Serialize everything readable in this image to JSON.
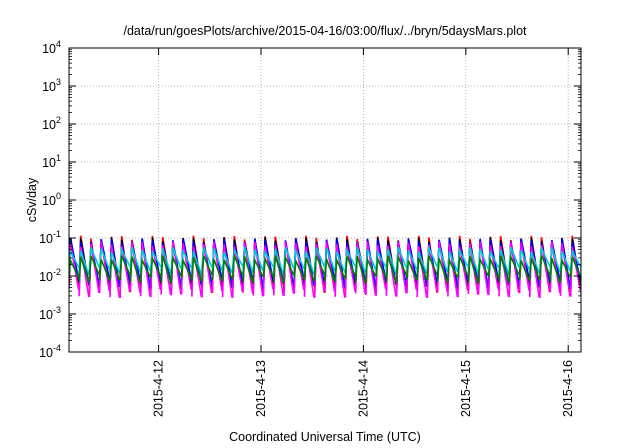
{
  "chart_data": {
    "type": "line",
    "title": "/data/run/goesPlots/archive/2015-04-16/03:00/flux/../bryn/5daysMars.plot",
    "xlabel": "Coordinated Universal Time (UTC)",
    "ylabel": "cSv/day",
    "yscale": "log",
    "ylim": [
      0.0001,
      10000
    ],
    "y_ticks": [
      {
        "value": 0.0001,
        "base": "10",
        "exp": "-4"
      },
      {
        "value": 0.001,
        "base": "10",
        "exp": "-3"
      },
      {
        "value": 0.01,
        "base": "10",
        "exp": "-2"
      },
      {
        "value": 0.1,
        "base": "10",
        "exp": "-1"
      },
      {
        "value": 1,
        "base": "10",
        "exp": "0"
      },
      {
        "value": 10,
        "base": "10",
        "exp": "1"
      },
      {
        "value": 100,
        "base": "10",
        "exp": "2"
      },
      {
        "value": 1000,
        "base": "10",
        "exp": "3"
      },
      {
        "value": 10000,
        "base": "10",
        "exp": "4"
      }
    ],
    "xlim": [
      "2015-04-11T03:00",
      "2015-04-16T03:00"
    ],
    "x_ticks": [
      {
        "value": "2015-04-12T00:00",
        "label": "2015-4-12"
      },
      {
        "value": "2015-04-13T00:00",
        "label": "2015-4-13"
      },
      {
        "value": "2015-04-14T00:00",
        "label": "2015-4-14"
      },
      {
        "value": "2015-04-15T00:00",
        "label": "2015-4-15"
      },
      {
        "value": "2015-04-16T00:00",
        "label": "2015-4-16"
      }
    ],
    "grid": true,
    "period_hours": 2.4,
    "series": [
      {
        "color": "#ff0000",
        "peak": 0.1,
        "trough": 0.005
      },
      {
        "color": "#000000",
        "peak": 0.09,
        "trough": 0.006
      },
      {
        "color": "#0000ff",
        "peak": 0.085,
        "trough": 0.007
      },
      {
        "color": "#ff00ff",
        "peak": 0.07,
        "trough": 0.0037
      },
      {
        "color": "#00cccc",
        "peak": 0.05,
        "trough": 0.015
      },
      {
        "color": "#008000",
        "peak": 0.03,
        "trough": 0.009
      }
    ]
  }
}
